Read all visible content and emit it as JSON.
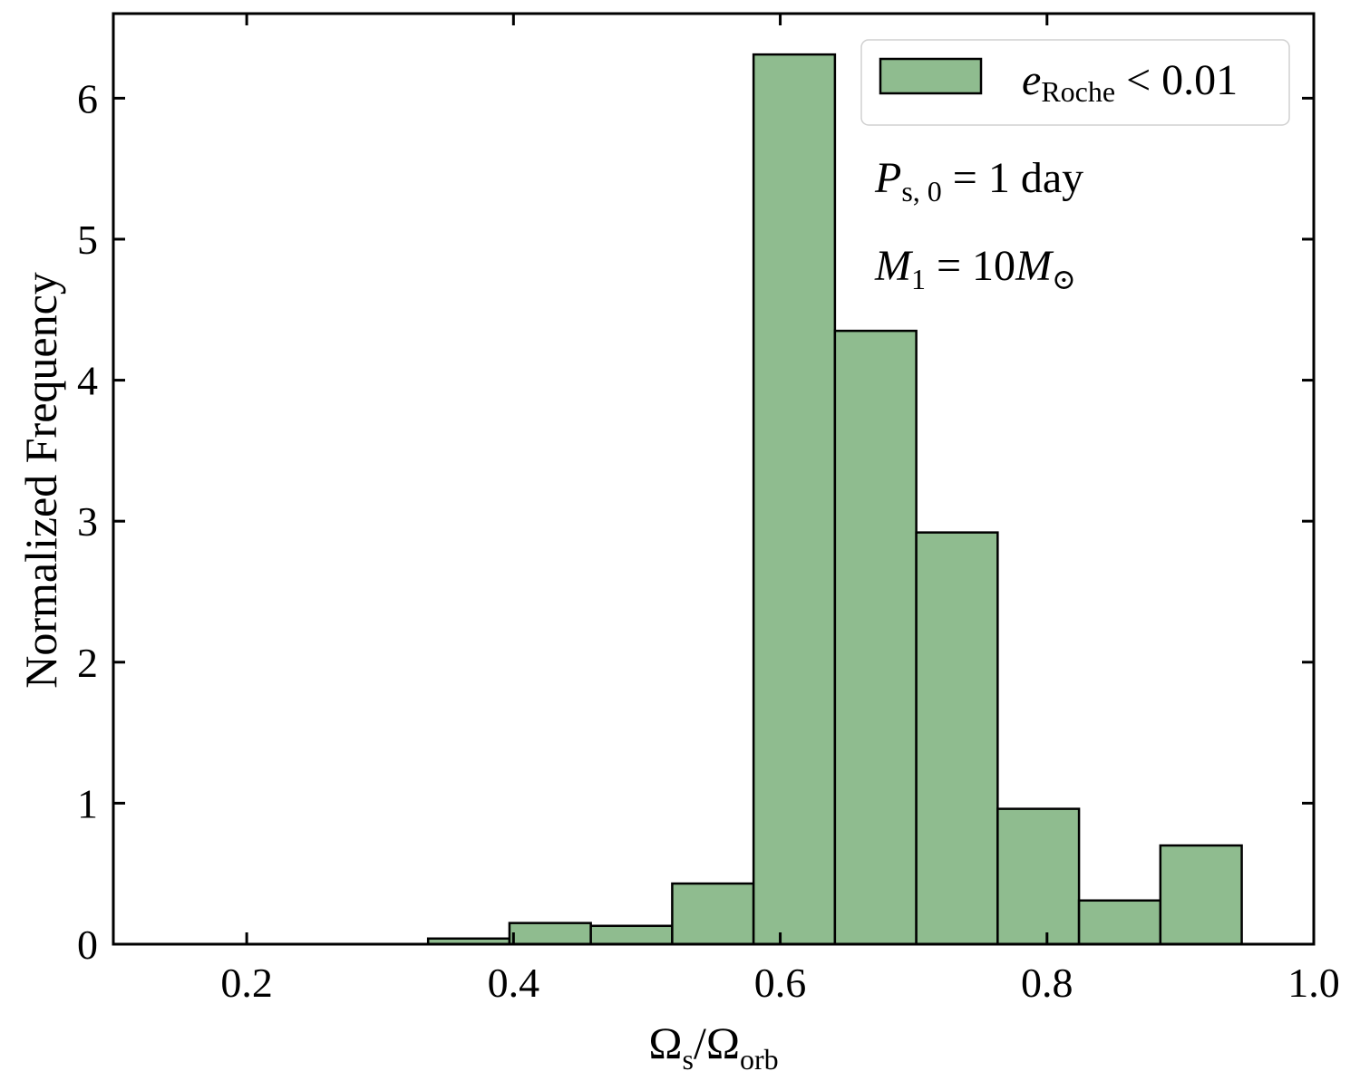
{
  "chart_data": {
    "type": "bar",
    "xlabel": {
      "main": "Ω",
      "sub": "s",
      "slash": "/",
      "main2": "Ω",
      "sub2": "orb"
    },
    "ylabel": "Normalized Frequency",
    "xlim": [
      0.1,
      1.0
    ],
    "ylim": [
      0,
      6.6
    ],
    "xticks": [
      0.2,
      0.4,
      0.6,
      0.8,
      1.0
    ],
    "xtick_labels": [
      "0.2",
      "0.4",
      "0.6",
      "0.8",
      "1.0"
    ],
    "yticks": [
      0,
      1,
      2,
      3,
      4,
      5,
      6
    ],
    "ytick_labels": [
      "0",
      "1",
      "2",
      "3",
      "4",
      "5",
      "6"
    ],
    "bins": [
      {
        "x0": 0.336,
        "x1": 0.397,
        "value": 0.04
      },
      {
        "x0": 0.397,
        "x1": 0.458,
        "value": 0.15
      },
      {
        "x0": 0.458,
        "x1": 0.519,
        "value": 0.13
      },
      {
        "x0": 0.519,
        "x1": 0.58,
        "value": 0.43
      },
      {
        "x0": 0.58,
        "x1": 0.641,
        "value": 6.31
      },
      {
        "x0": 0.641,
        "x1": 0.702,
        "value": 4.35
      },
      {
        "x0": 0.702,
        "x1": 0.763,
        "value": 2.92
      },
      {
        "x0": 0.763,
        "x1": 0.824,
        "value": 0.96
      },
      {
        "x0": 0.824,
        "x1": 0.885,
        "value": 0.31
      },
      {
        "x0": 0.885,
        "x1": 0.946,
        "value": 0.7
      }
    ],
    "bar_color": "#8fbc8f",
    "edge_color": "#000000",
    "legend": {
      "placement": "top-right",
      "var": "e",
      "sub": "Roche",
      "rest": " < 0.01"
    },
    "annotations": {
      "p_var": "P",
      "p_sub": "s, 0",
      "p_rest": " = 1 day",
      "m_var": "M",
      "m_sub": "1",
      "m_mid": " = 10",
      "m_var2": "M",
      "m_sun": "⊙"
    },
    "grid": false
  }
}
